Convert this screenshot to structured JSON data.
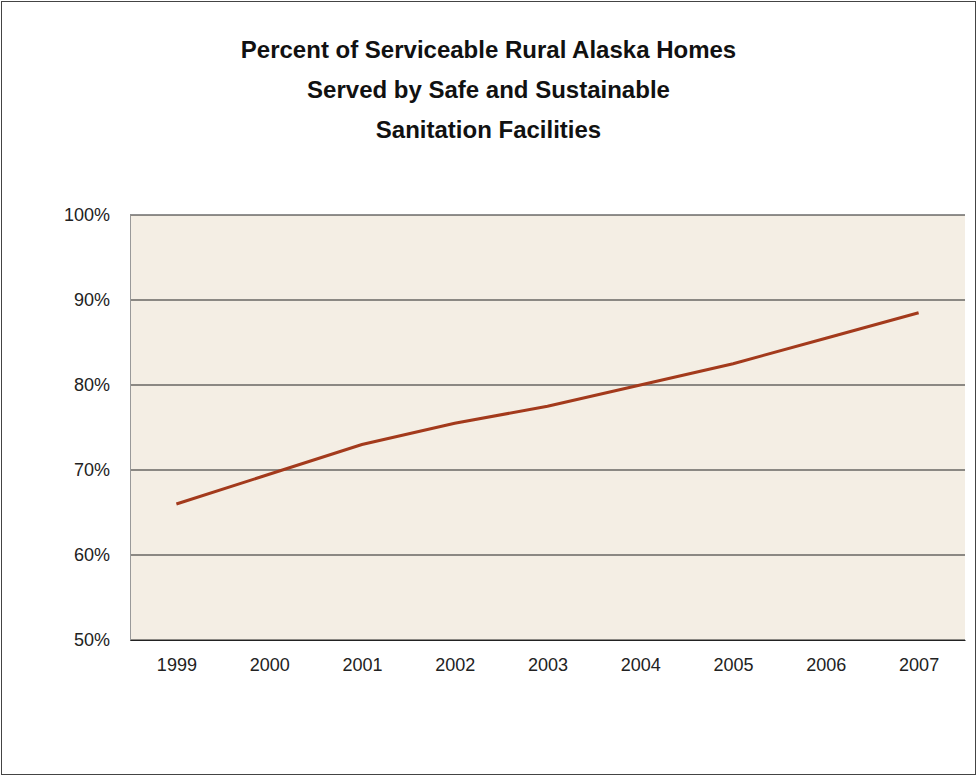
{
  "chart_data": {
    "type": "line",
    "title": "Percent of Serviceable Rural Alaska Homes\nServed by Safe and Sustainable\nSanitation Facilities",
    "categories": [
      "1999",
      "2000",
      "2001",
      "2002",
      "2003",
      "2004",
      "2005",
      "2006",
      "2007"
    ],
    "values": [
      66,
      69.5,
      73,
      75.5,
      77.5,
      80,
      82.5,
      85.5,
      88.5
    ],
    "color": "#a33a1c",
    "ylim": [
      50,
      100
    ],
    "yticks": [
      {
        "value": 50,
        "label": "50%"
      },
      {
        "value": 60,
        "label": "60%"
      },
      {
        "value": 70,
        "label": "70%"
      },
      {
        "value": 80,
        "label": "80%"
      },
      {
        "value": 90,
        "label": "90%"
      },
      {
        "value": 100,
        "label": "100%"
      }
    ],
    "grid": true
  }
}
